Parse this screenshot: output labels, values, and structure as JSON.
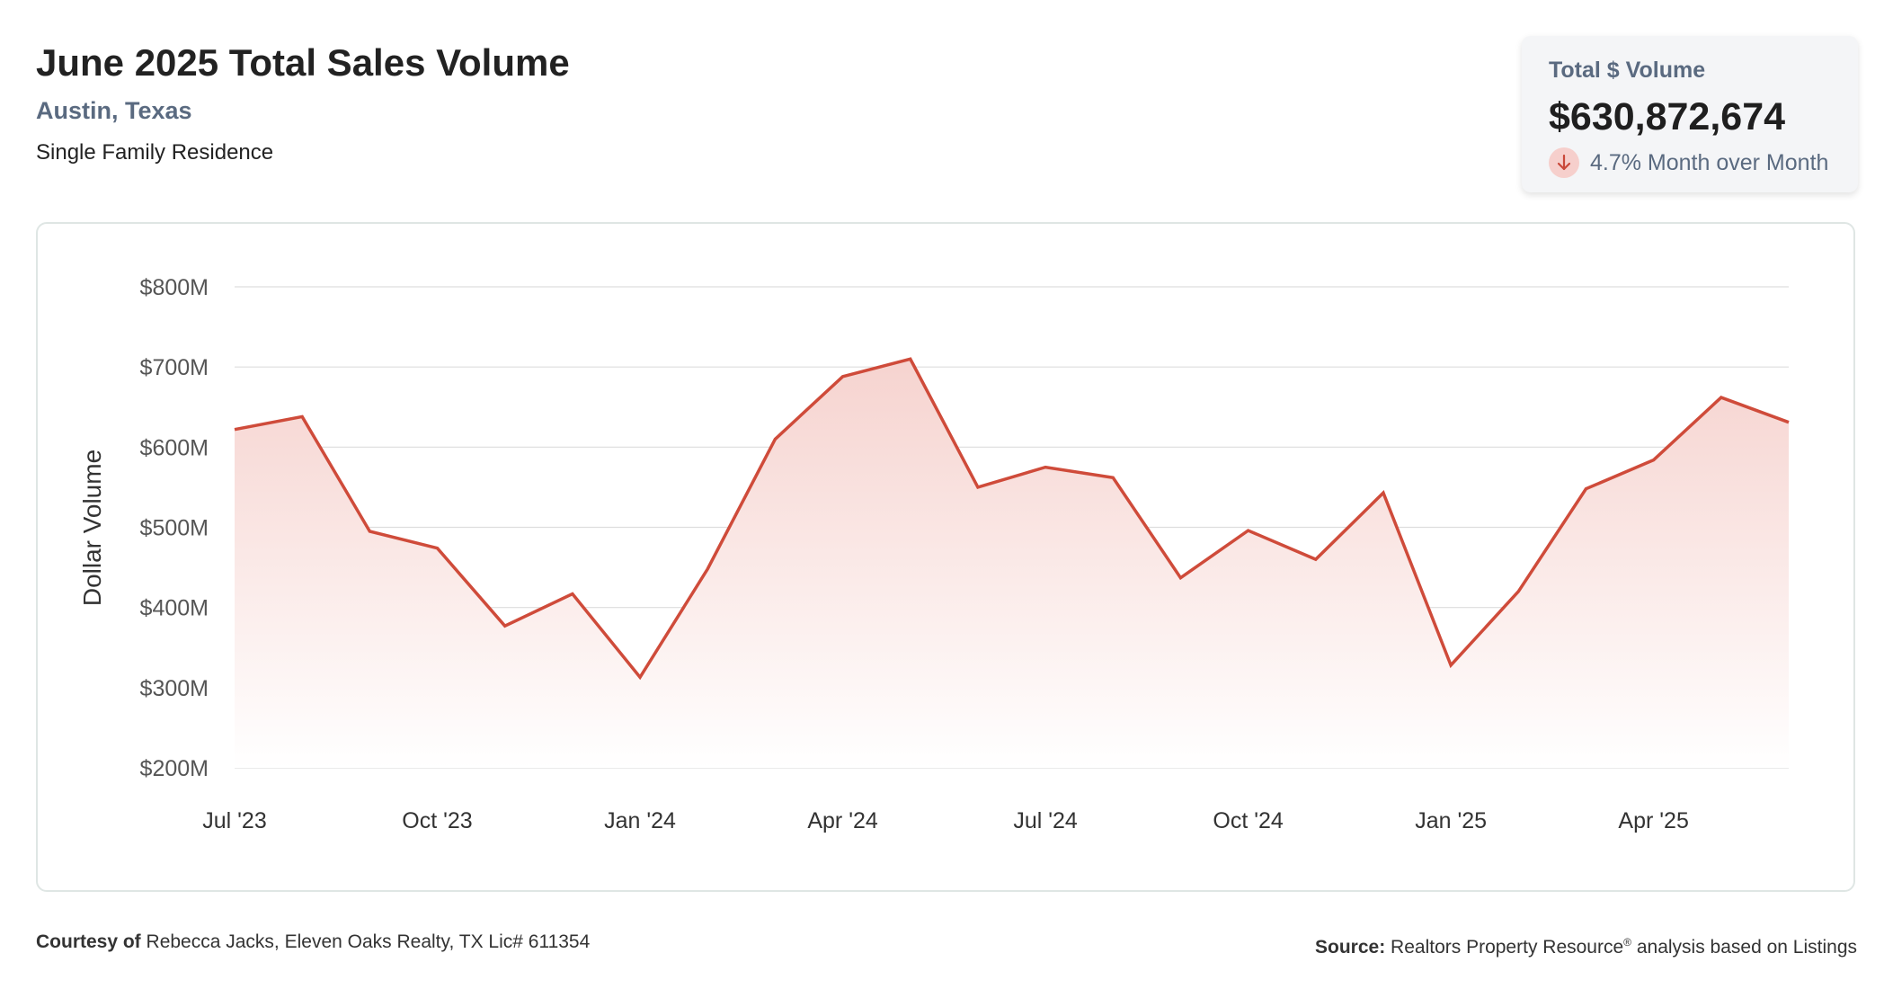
{
  "header": {
    "title": "June 2025 Total Sales Volume",
    "location": "Austin, Texas",
    "property_type": "Single Family Residence"
  },
  "kpi": {
    "label": "Total $ Volume",
    "value": "$630,872,674",
    "change_text": "4.7% Month over Month",
    "direction_icon": "arrow-down-icon",
    "colors": {
      "badge_bg": "#f6cfcc",
      "arrow": "#c9483a"
    }
  },
  "chart_data": {
    "type": "area",
    "title": "",
    "xlabel": "",
    "ylabel": "Dollar Volume",
    "x": [
      "2023-07",
      "2023-08",
      "2023-09",
      "2023-10",
      "2023-11",
      "2023-12",
      "2024-01",
      "2024-02",
      "2024-03",
      "2024-04",
      "2024-05",
      "2024-06",
      "2024-07",
      "2024-08",
      "2024-09",
      "2024-10",
      "2024-11",
      "2024-12",
      "2025-01",
      "2025-02",
      "2025-03",
      "2025-04",
      "2025-05",
      "2025-06"
    ],
    "x_tick_labels": [
      "Jul '23",
      "Oct '23",
      "Jan '24",
      "Apr '24",
      "Jul '24",
      "Oct '24",
      "Jan '25",
      "Apr '25"
    ],
    "x_tick_positions": [
      "2023-07",
      "2023-10",
      "2024-01",
      "2024-04",
      "2024-07",
      "2024-10",
      "2025-01",
      "2025-04"
    ],
    "y_tick_labels": [
      "$200M",
      "$300M",
      "$400M",
      "$500M",
      "$600M",
      "$700M",
      "$800M"
    ],
    "y_tick_values": [
      200,
      300,
      400,
      500,
      600,
      700,
      800
    ],
    "y_unit": "millions USD",
    "ylim": [
      200,
      800
    ],
    "series": [
      {
        "values": [
          622,
          638,
          495,
          474,
          377,
          417,
          313,
          448,
          610,
          688,
          710,
          550,
          575,
          562,
          437,
          496,
          460,
          543,
          328,
          420,
          548,
          584,
          662,
          631
        ]
      }
    ],
    "grid": true,
    "legend": "none",
    "colors": {
      "line": "#cf4b3a",
      "fill_top": "#f6d3cf",
      "fill_bottom": "#ffffff",
      "grid": "#dddddd"
    }
  },
  "footer": {
    "courtesy_label": "Courtesy of",
    "courtesy_text": "Rebecca Jacks, Eleven Oaks Realty, TX Lic# 611354",
    "source_label": "Source:",
    "source_name": "Realtors Property Resource",
    "source_mark": "®",
    "source_rest": "analysis based on Listings"
  }
}
